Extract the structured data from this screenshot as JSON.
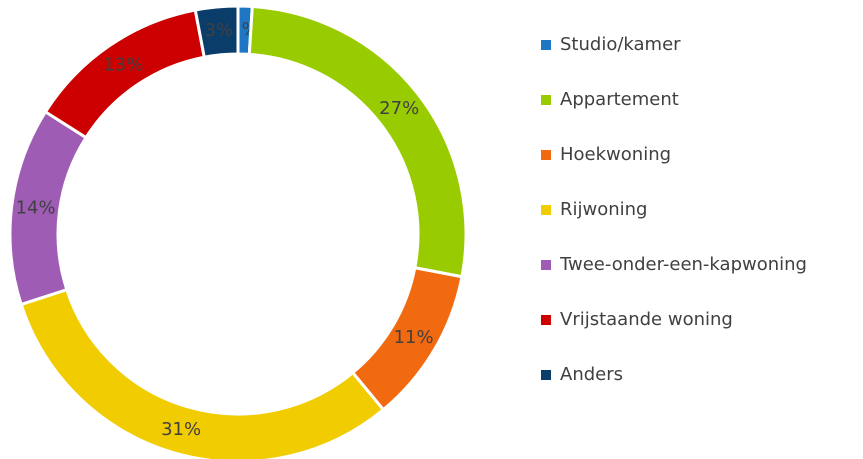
{
  "chart_data": {
    "type": "donut",
    "categories": [
      "Studio/kamer",
      "Appartement",
      "Hoekwoning",
      "Rijwoning",
      "Twee-onder-een-kapwoning",
      "Vrijstaande woning",
      "Anders"
    ],
    "values": [
      1,
      27,
      11,
      31,
      14,
      13,
      3
    ],
    "value_labels": [
      "1%",
      "27%",
      "11%",
      "31%",
      "14%",
      "13%",
      "3%"
    ],
    "colors": [
      "#1f77c4",
      "#99cc00",
      "#f26a10",
      "#f0cc00",
      "#9e5cb5",
      "#cc0000",
      "#0b3d6b"
    ],
    "legend": "right"
  }
}
